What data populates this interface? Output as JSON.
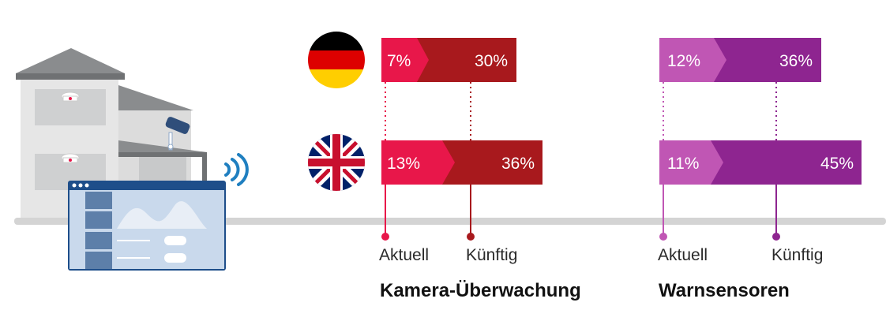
{
  "chart_data": {
    "type": "bar",
    "categories": [
      "Deutschland",
      "Großbritannien"
    ],
    "series": [
      {
        "group": "Kamera-Überwachung",
        "name": "Aktuell",
        "values": [
          7,
          13
        ]
      },
      {
        "group": "Kamera-Überwachung",
        "name": "Künftig",
        "values": [
          30,
          36
        ]
      },
      {
        "group": "Warnsensoren",
        "name": "Aktuell",
        "values": [
          12,
          11
        ]
      },
      {
        "group": "Warnsensoren",
        "name": "Künftig",
        "values": [
          36,
          45
        ]
      }
    ],
    "groups": [
      "Kamera-Überwachung",
      "Warnsensoren"
    ],
    "value_labels": {
      "kamera": {
        "de": [
          "7%",
          "30%"
        ],
        "uk": [
          "13%",
          "36%"
        ]
      },
      "warn": {
        "de": [
          "12%",
          "36%"
        ],
        "uk": [
          "11%",
          "45%"
        ]
      }
    },
    "axis_labels": {
      "kamera": {
        "current": "Aktuell",
        "future": "Künftig"
      },
      "warn": {
        "current": "Aktuell",
        "future": "Künftig"
      }
    },
    "colors": {
      "kamera_current": "#e8174a",
      "kamera_future": "#a8191d",
      "warn_current": "#c056b4",
      "warn_future": "#8e2590",
      "axis": "#d4d4d4"
    },
    "icons": [
      "germany-flag-icon",
      "uk-flag-icon",
      "house-illustration",
      "security-camera-icon",
      "smoke-detector-icon",
      "wifi-signal-icon",
      "dashboard-panel-icon"
    ]
  }
}
